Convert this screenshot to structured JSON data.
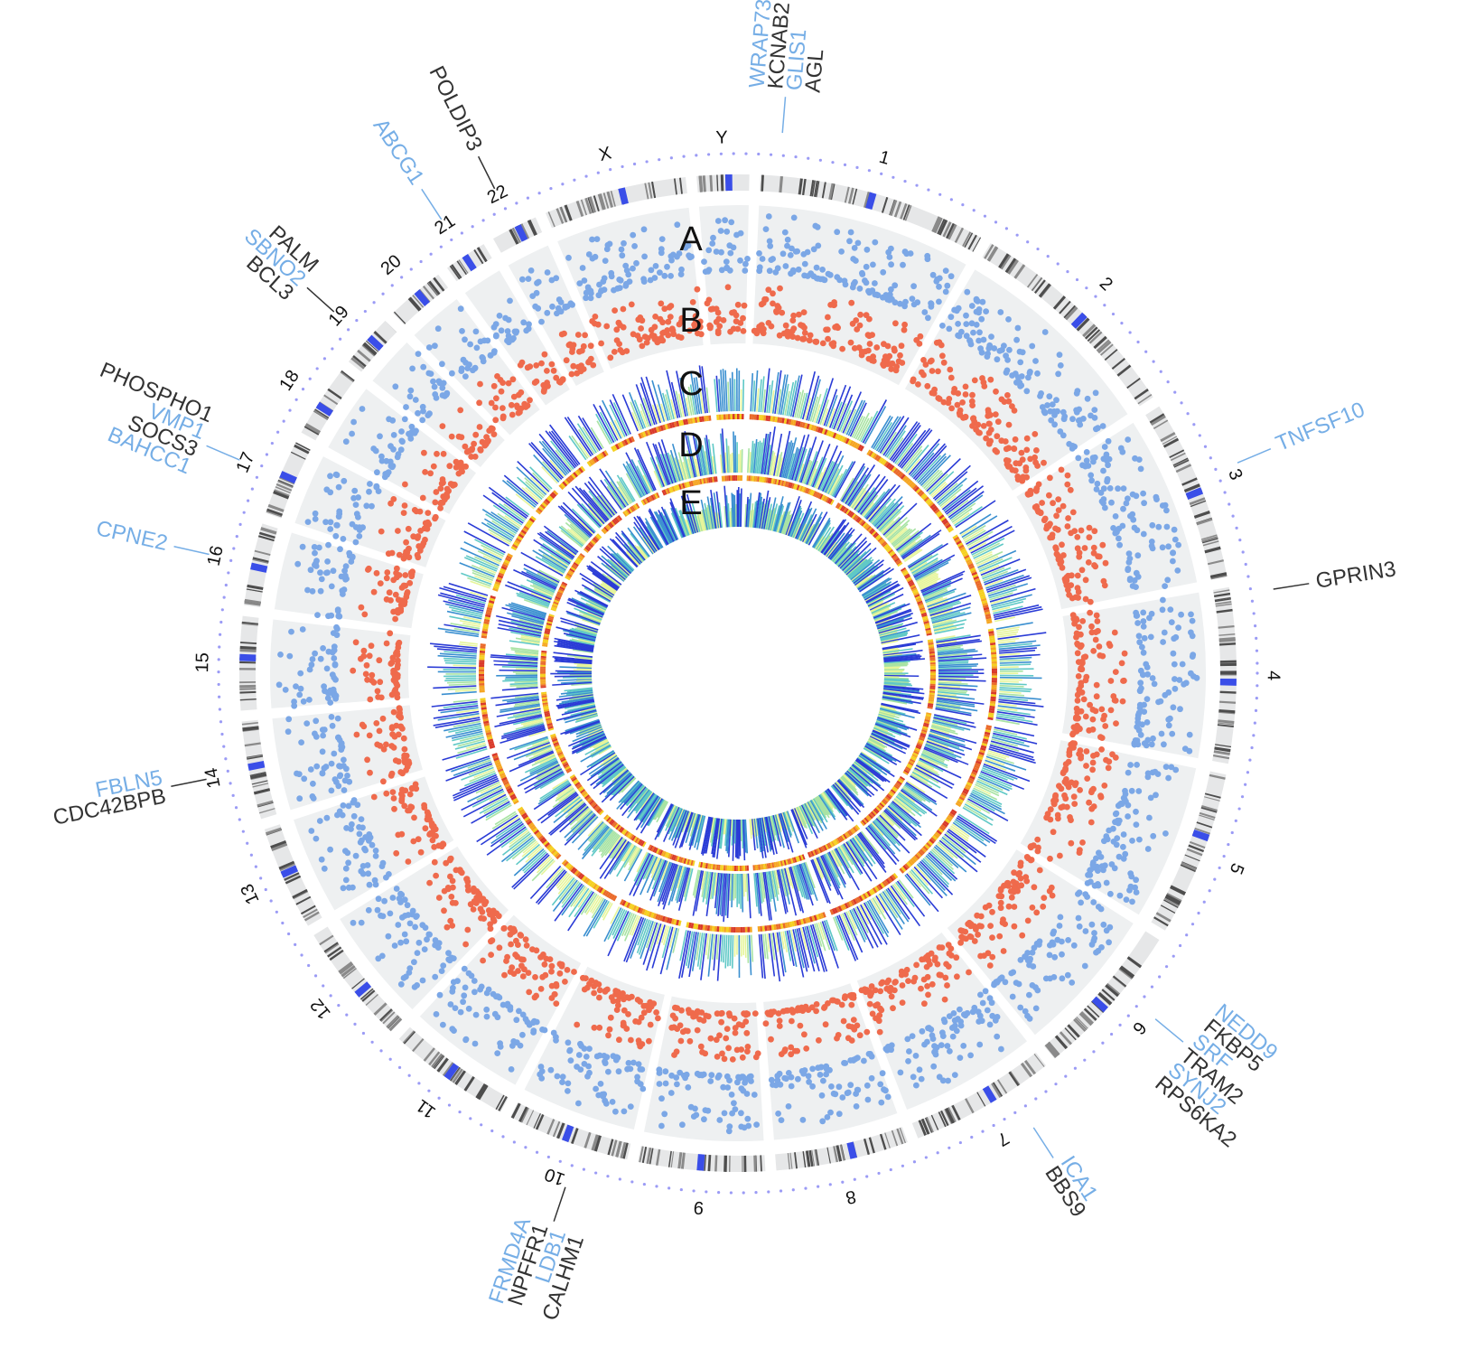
{
  "figure": {
    "colors": {
      "ring_bg": "#eef0f1",
      "ideogram_bg": "#e6e7e8",
      "band_dark": "#4d4d4d",
      "band_mid": "#8a8a8a",
      "centromere": "#3a4ee8",
      "dots": "#9b9bf5",
      "track_a": "#7ba7e6",
      "track_b": "#ef6a4c",
      "gene_blue": "#76aee6",
      "gene_black": "#333333",
      "heat": [
        "#e6f59a",
        "#a8e3a3",
        "#5fc8c6",
        "#3a8fd0",
        "#2a3bd6"
      ],
      "ring_heat": [
        "#f5d020",
        "#f5a623",
        "#ea6a2a",
        "#d93a2a"
      ]
    },
    "chromosomes": [
      "1",
      "2",
      "3",
      "4",
      "5",
      "6",
      "7",
      "8",
      "9",
      "10",
      "11",
      "12",
      "13",
      "14",
      "15",
      "16",
      "17",
      "18",
      "19",
      "20",
      "21",
      "22",
      "X",
      "Y"
    ],
    "chromosome_sizes_mb": [
      249,
      243,
      198,
      191,
      181,
      171,
      159,
      145,
      138,
      134,
      135,
      133,
      114,
      107,
      102,
      90,
      83,
      80,
      59,
      64,
      47,
      51,
      156,
      57
    ],
    "track_labels": [
      "A",
      "B",
      "C",
      "D",
      "E"
    ],
    "gene_annotations": [
      {
        "chr": "1",
        "pos": 0.08,
        "genes": [
          "WRAP73",
          "KCNAB2",
          "GLIS1",
          "AGL"
        ],
        "colors": [
          "blue",
          "black",
          "blue",
          "black"
        ]
      },
      {
        "chr": "3",
        "pos": 0.45,
        "genes": [
          "TNFSF10"
        ],
        "colors": [
          "blue"
        ]
      },
      {
        "chr": "4",
        "pos": 0.05,
        "genes": [
          "GPRIN3"
        ],
        "colors": [
          "black"
        ]
      },
      {
        "chr": "6",
        "pos": 0.4,
        "genes": [
          "NEDD9",
          "FKBP5",
          "SRF",
          "TRAM2",
          "SYNJ2",
          "RPS6KA2"
        ],
        "colors": [
          "blue",
          "black",
          "blue",
          "black",
          "blue",
          "black"
        ]
      },
      {
        "chr": "7",
        "pos": 0.3,
        "genes": [
          "ICA1",
          "BBS9"
        ],
        "colors": [
          "blue",
          "black"
        ]
      },
      {
        "chr": "10",
        "pos": 0.4,
        "genes": [
          "CALHM1",
          "LDB1",
          "NPFFR1",
          "FRMD4A"
        ],
        "colors": [
          "black",
          "blue",
          "black",
          "blue"
        ]
      },
      {
        "chr": "14",
        "pos": 0.5,
        "genes": [
          "CDC42BPB",
          "FBLN5"
        ],
        "colors": [
          "black",
          "blue"
        ]
      },
      {
        "chr": "16",
        "pos": 0.5,
        "genes": [
          "CPNE2"
        ],
        "colors": [
          "blue"
        ]
      },
      {
        "chr": "17",
        "pos": 0.5,
        "genes": [
          "BAHCC1",
          "SOCS3",
          "VMP1",
          "PHOSPHO1"
        ],
        "colors": [
          "blue",
          "black",
          "blue",
          "black"
        ]
      },
      {
        "chr": "19",
        "pos": 0.5,
        "genes": [
          "BCL3",
          "SBNO2",
          "PALM"
        ],
        "colors": [
          "black",
          "blue",
          "black"
        ]
      },
      {
        "chr": "21",
        "pos": 0.5,
        "genes": [
          "ABCG1"
        ],
        "colors": [
          "blue"
        ]
      },
      {
        "chr": "22",
        "pos": 0.5,
        "genes": [
          "POLDIP3"
        ],
        "colors": [
          "black"
        ]
      }
    ]
  }
}
